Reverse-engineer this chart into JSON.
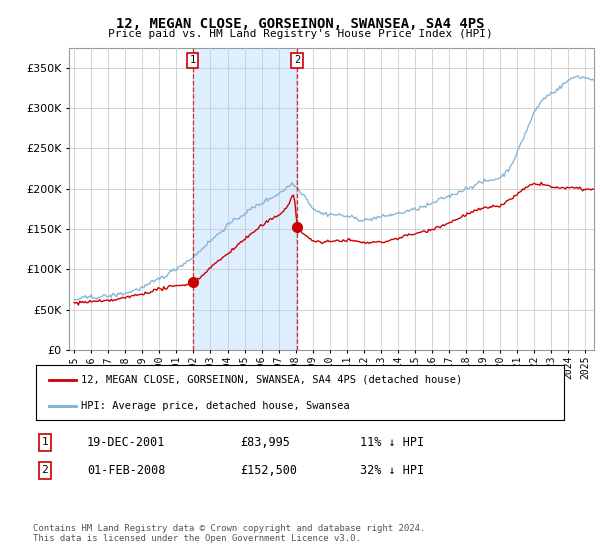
{
  "title": "12, MEGAN CLOSE, GORSEINON, SWANSEA, SA4 4PS",
  "subtitle": "Price paid vs. HM Land Registry's House Price Index (HPI)",
  "ytick_values": [
    0,
    50000,
    100000,
    150000,
    200000,
    250000,
    300000,
    350000
  ],
  "ylim": [
    0,
    375000
  ],
  "xlim_start": 1994.7,
  "xlim_end": 2025.5,
  "sale1_x": 2001.96,
  "sale1_y": 83995,
  "sale1_label": "1",
  "sale2_x": 2008.08,
  "sale2_y": 152500,
  "sale2_label": "2",
  "red_line_color": "#cc0000",
  "blue_line_color": "#7ab0d4",
  "shade_color": "#ddeeff",
  "vline_color": "#cc0000",
  "marker_color": "#cc0000",
  "transaction_box_color": "#cc0000",
  "background_color": "#ffffff",
  "grid_color": "#cccccc",
  "legend1_text": "12, MEGAN CLOSE, GORSEINON, SWANSEA, SA4 4PS (detached house)",
  "legend2_text": "HPI: Average price, detached house, Swansea",
  "row1_num": "1",
  "row1_date": "19-DEC-2001",
  "row1_price": "£83,995",
  "row1_hpi": "11% ↓ HPI",
  "row2_num": "2",
  "row2_date": "01-FEB-2008",
  "row2_price": "£152,500",
  "row2_hpi": "32% ↓ HPI",
  "footer": "Contains HM Land Registry data © Crown copyright and database right 2024.\nThis data is licensed under the Open Government Licence v3.0.",
  "xtick_years": [
    1995,
    1996,
    1997,
    1998,
    1999,
    2000,
    2001,
    2002,
    2003,
    2004,
    2005,
    2006,
    2007,
    2008,
    2009,
    2010,
    2011,
    2012,
    2013,
    2014,
    2015,
    2016,
    2017,
    2018,
    2019,
    2020,
    2021,
    2022,
    2023,
    2024,
    2025
  ]
}
